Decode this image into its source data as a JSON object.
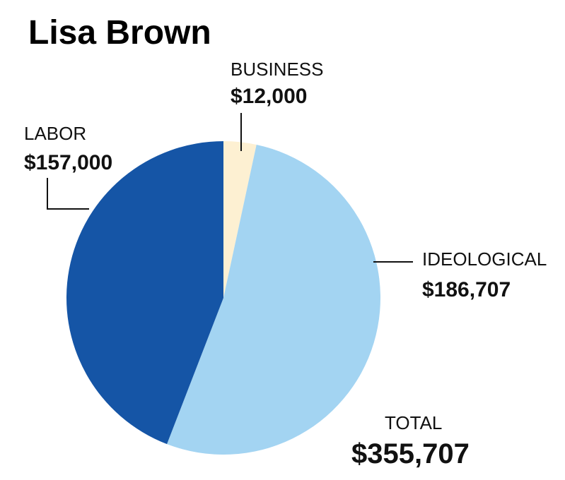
{
  "chart_data": {
    "type": "pie",
    "title": "Lisa Brown",
    "categories": [
      "BUSINESS",
      "IDEOLOGICAL",
      "LABOR"
    ],
    "values": [
      12000,
      186707,
      157000
    ],
    "value_labels": [
      "$12,000",
      "$186,707",
      "$157,000"
    ],
    "total_label": "TOTAL",
    "total_value": "$355,707",
    "colors": [
      "#FDF0D2",
      "#A3D4F2",
      "#1555A6"
    ],
    "legend": "none"
  }
}
